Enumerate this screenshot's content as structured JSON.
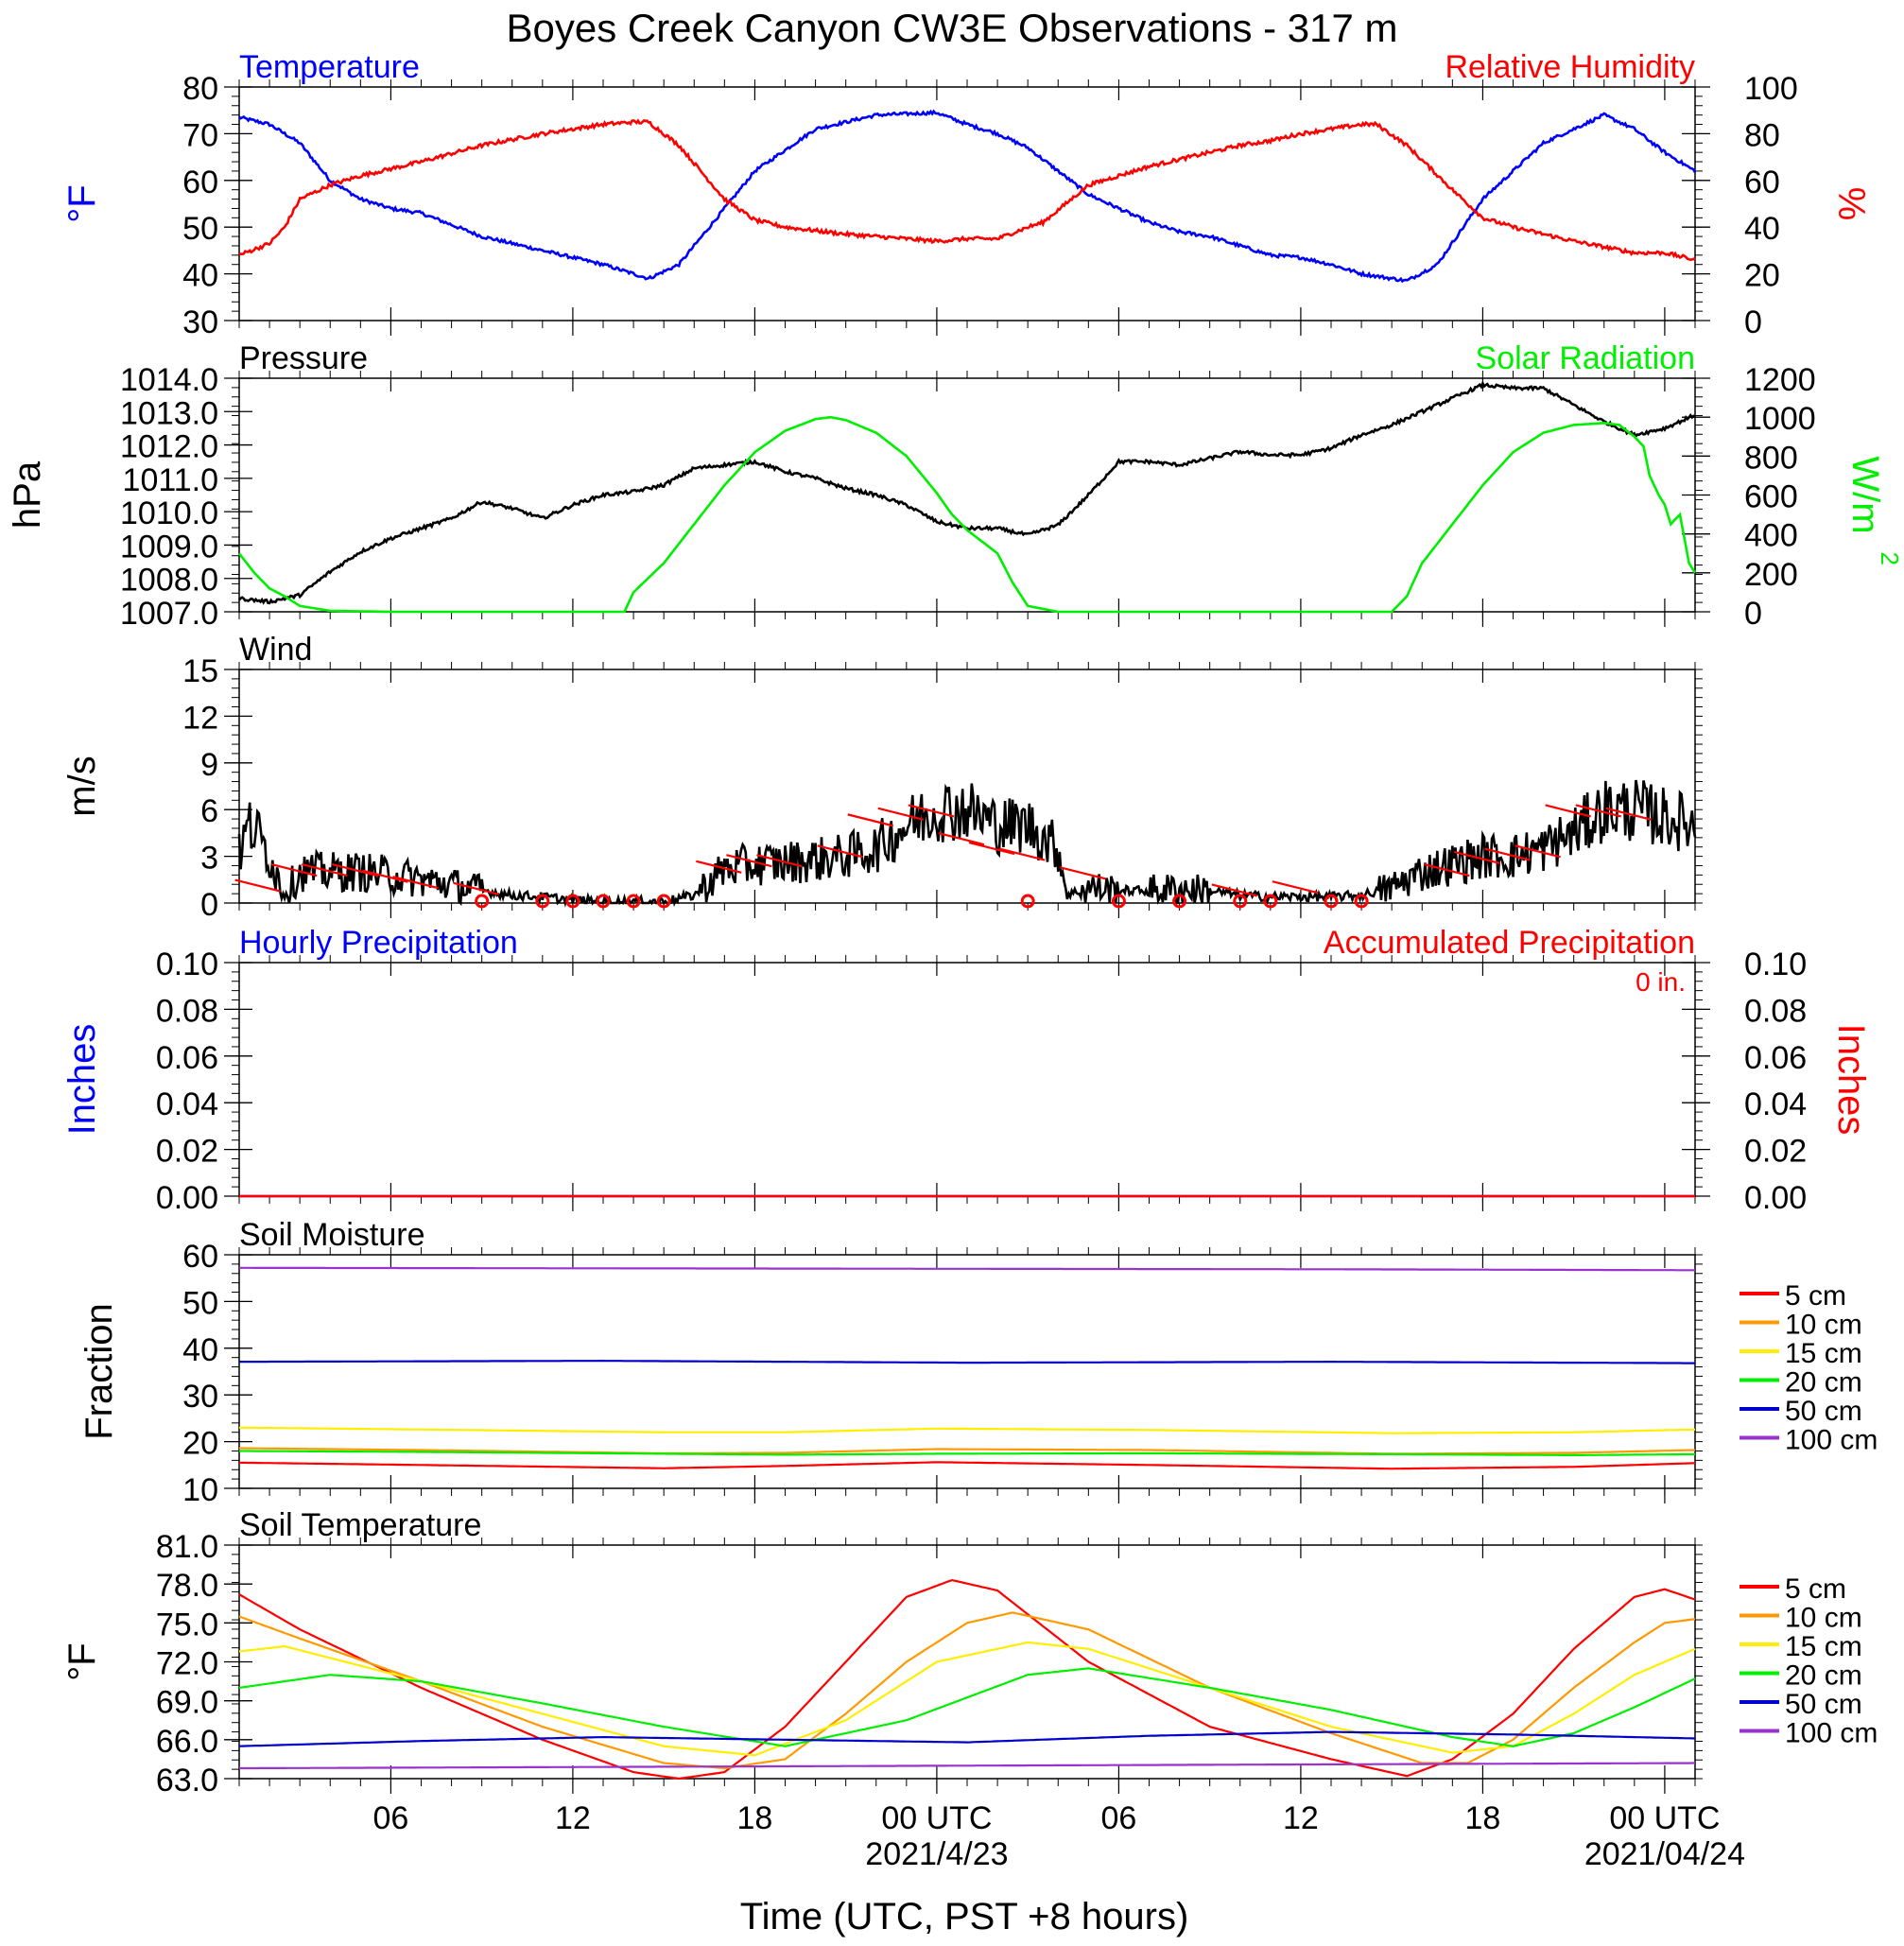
{
  "page": {
    "title": "Boyes Creek Canyon CW3E Observations - 317 m",
    "xlabel": "Time (UTC, PST +8 hours)",
    "x_ticks": [
      "06",
      "12",
      "18",
      "00 UTC",
      "06",
      "12",
      "18",
      "00 UTC"
    ],
    "date_labels": [
      "2021/4/23",
      "2021/04/24"
    ]
  },
  "colors": {
    "blue": "#0000ff",
    "red": "#ff0000",
    "green": "#00ee00",
    "black": "#000000",
    "orange": "#ff9900",
    "yellow": "#ffee00",
    "navy": "#0000cc",
    "purple": "#9933cc"
  },
  "chart_data": [
    {
      "id": "temp_rh",
      "type": "line",
      "left_title": "Temperature",
      "right_title": "Relative Humidity",
      "ylabel": "°F",
      "ylabel_right": "%",
      "ylim": [
        30,
        80
      ],
      "y_ticks": [
        "80",
        "70",
        "60",
        "50",
        "40",
        "30"
      ],
      "ylim_right": [
        0,
        100
      ],
      "y_ticks_right": [
        "100",
        "80",
        "60",
        "40",
        "20",
        "0"
      ],
      "xlim_hours": [
        0,
        48
      ],
      "series": [
        {
          "name": "Temperature",
          "axis": "left",
          "color": "#0000ff",
          "x": [
            0,
            1,
            2,
            3,
            4,
            5,
            6,
            8,
            10,
            12,
            13,
            13.5,
            14.5,
            16,
            17,
            19,
            21,
            23,
            24,
            25,
            26,
            27,
            28,
            29,
            30,
            31,
            32,
            34,
            35,
            36,
            37,
            38,
            38.5,
            39.5,
            41,
            43,
            45,
            46,
            47,
            48
          ],
          "y": [
            73.5,
            72,
            68,
            60,
            56,
            54,
            53,
            48,
            45,
            42,
            40,
            39,
            42,
            54,
            62,
            71,
            74,
            74.5,
            72,
            70,
            67,
            62,
            57,
            54,
            51,
            49,
            48,
            44,
            43.5,
            42,
            40,
            39,
            38.5,
            42,
            56,
            68,
            74,
            71,
            66,
            62
          ]
        },
        {
          "name": "Relative Humidity",
          "axis": "right",
          "color": "#ff0000",
          "x": [
            0,
            1,
            1.5,
            2,
            3,
            4,
            6,
            8,
            10,
            12,
            13,
            13.5,
            14.5,
            16,
            17,
            18,
            20,
            21,
            23,
            24,
            25,
            26,
            26.5,
            28,
            30,
            32,
            33,
            34,
            35,
            36,
            37,
            37.5,
            38.5,
            40,
            41,
            42,
            44,
            46,
            47,
            48
          ],
          "y": [
            28,
            33,
            40,
            52,
            58,
            62,
            68,
            75,
            80,
            84,
            85,
            85,
            75,
            52,
            43,
            40,
            37,
            36,
            34,
            35,
            35,
            40,
            42,
            58,
            66,
            72,
            75,
            77,
            80,
            82,
            84,
            84,
            75,
            56,
            44,
            40,
            34,
            29,
            29,
            26
          ]
        }
      ]
    },
    {
      "id": "pressure_solar",
      "type": "line",
      "left_title": "Pressure",
      "right_title": "Solar Radiation",
      "ylabel": "hPa",
      "ylabel_right": "W/m",
      "ylim": [
        1007,
        1014
      ],
      "y_ticks": [
        "1014.0",
        "1013.0",
        "1012.0",
        "1011.0",
        "1010.0",
        "1009.0",
        "1008.0",
        "1007.0"
      ],
      "ylim_right": [
        0,
        1200
      ],
      "y_ticks_right": [
        "1200",
        "1000",
        "800",
        "600",
        "400",
        "200",
        "0"
      ],
      "xlim_hours": [
        0,
        48
      ],
      "series": [
        {
          "name": "Pressure",
          "axis": "left",
          "color": "#000000",
          "x": [
            0,
            1,
            2,
            3,
            4,
            5,
            6,
            7,
            8,
            9,
            10,
            11,
            12,
            13,
            14,
            15,
            16,
            17,
            18,
            19,
            20,
            21,
            22,
            23,
            24,
            25,
            26,
            27,
            28,
            29,
            30,
            31,
            32,
            33,
            34,
            35,
            36,
            37,
            38,
            39,
            40,
            41,
            42,
            43,
            44,
            45,
            46,
            47,
            48
          ],
          "y": [
            1007.4,
            1007.3,
            1007.5,
            1008.2,
            1008.8,
            1009.2,
            1009.5,
            1009.8,
            1010.3,
            1010.1,
            1009.8,
            1010.2,
            1010.5,
            1010.6,
            1010.8,
            1011.3,
            1011.4,
            1011.5,
            1011.2,
            1011.0,
            1010.7,
            1010.5,
            1010.2,
            1009.7,
            1009.5,
            1009.5,
            1009.3,
            1009.6,
            1010.5,
            1011.5,
            1011.5,
            1011.4,
            1011.6,
            1011.8,
            1011.7,
            1011.7,
            1011.9,
            1012.3,
            1012.6,
            1013.0,
            1013.4,
            1013.8,
            1013.7,
            1013.7,
            1013.2,
            1012.7,
            1012.3,
            1012.5,
            1012.9
          ]
        },
        {
          "name": "Solar Radiation",
          "axis": "right",
          "color": "#00ee00",
          "x": [
            0,
            0.5,
            1,
            1.5,
            2,
            3,
            5,
            10,
            12,
            12.7,
            13,
            14,
            15,
            16,
            17,
            18,
            19,
            19.5,
            20,
            21,
            22,
            23,
            23.5,
            24,
            25,
            25.5,
            26,
            27,
            28,
            30,
            36,
            37,
            38,
            38.5,
            39,
            40,
            41,
            42,
            43,
            44,
            45,
            45.5,
            46,
            46.3,
            46.5,
            46.8,
            47,
            47.2,
            47.5,
            47.8,
            48
          ],
          "y": [
            300,
            200,
            120,
            80,
            30,
            5,
            0,
            0,
            0,
            0,
            100,
            250,
            450,
            650,
            820,
            930,
            990,
            1000,
            985,
            920,
            800,
            610,
            500,
            420,
            300,
            150,
            30,
            0,
            0,
            0,
            0,
            0,
            0,
            80,
            250,
            450,
            650,
            820,
            920,
            960,
            970,
            960,
            900,
            850,
            700,
            600,
            550,
            450,
            500,
            250,
            200
          ]
        }
      ]
    },
    {
      "id": "wind",
      "type": "line",
      "left_title": "Wind",
      "ylabel": "m/s",
      "ylim": [
        0,
        15
      ],
      "y_ticks": [
        "15",
        "12",
        "9",
        "6",
        "3",
        "0"
      ],
      "xlim_hours": [
        0,
        48
      ],
      "series": [
        {
          "name": "Wind speed",
          "color": "#000000",
          "x": [
            0,
            0.3,
            0.6,
            1,
            1.5,
            2,
            3,
            4,
            5,
            6,
            7,
            8,
            9,
            10,
            11,
            12,
            13,
            14,
            15,
            16,
            17,
            18,
            19,
            20,
            21,
            22,
            23,
            24,
            25,
            26,
            27,
            27.3,
            28,
            29,
            30,
            31,
            32,
            33,
            34,
            35,
            36,
            37,
            38,
            39,
            40,
            41,
            42,
            43,
            44,
            45,
            46,
            47,
            48
          ],
          "y": [
            3,
            5,
            4.5,
            3,
            0.5,
            2,
            2,
            2,
            1.8,
            1.5,
            1.2,
            0.8,
            0.5,
            0.4,
            0.2,
            0.1,
            0.1,
            0.1,
            0.5,
            2.2,
            2.5,
            2.6,
            2.8,
            3,
            3.5,
            5,
            6,
            6,
            5,
            5,
            3.5,
            0.5,
            1,
            0.8,
            0.8,
            0.9,
            0.8,
            0.5,
            0.4,
            0.4,
            0.4,
            0.5,
            1,
            2,
            2.5,
            3,
            3,
            3.5,
            4.5,
            6,
            6,
            5.5,
            5
          ]
        }
      ],
      "barb_calm_hours": [
        8,
        10,
        11,
        12,
        13,
        14,
        26,
        29,
        31,
        33,
        34,
        36,
        37
      ]
    },
    {
      "id": "precip",
      "type": "line",
      "left_title": "Hourly Precipitation",
      "right_title": "Accumulated Precipitation",
      "total_label": "0 in.",
      "ylabel": "Inches",
      "ylabel_right": "Inches",
      "ylim": [
        0,
        0.1
      ],
      "y_ticks": [
        "0.10",
        "0.08",
        "0.06",
        "0.04",
        "0.02",
        "0.00"
      ],
      "y_ticks_right": [
        "0.10",
        "0.08",
        "0.06",
        "0.04",
        "0.02",
        "0.00"
      ],
      "xlim_hours": [
        0,
        48
      ],
      "series": [
        {
          "name": "Hourly Precipitation",
          "color": "#0000ff",
          "x": [
            0,
            48
          ],
          "y": [
            0,
            0
          ]
        },
        {
          "name": "Accumulated Precipitation",
          "color": "#ff0000",
          "x": [
            0,
            48
          ],
          "y": [
            0,
            0
          ]
        }
      ]
    },
    {
      "id": "soil_moisture",
      "type": "line",
      "left_title": "Soil Moisture",
      "ylabel": "Fraction",
      "ylim": [
        10,
        60
      ],
      "y_ticks": [
        "60",
        "50",
        "40",
        "30",
        "20",
        "10"
      ],
      "xlim_hours": [
        0,
        48
      ],
      "legend_title": "",
      "series": [
        {
          "name": "5 cm",
          "color": "#ff0000",
          "x": [
            0,
            6,
            14,
            18,
            23,
            30,
            38,
            44,
            48
          ],
          "y": [
            15.5,
            15,
            14.3,
            14.8,
            15.6,
            15,
            14.2,
            14.6,
            15.4
          ]
        },
        {
          "name": "10 cm",
          "color": "#ff9900",
          "x": [
            0,
            6,
            14,
            18,
            23,
            30,
            38,
            44,
            48
          ],
          "y": [
            18.6,
            18.2,
            17.5,
            17.6,
            18.4,
            18.2,
            17.4,
            17.6,
            18.2
          ]
        },
        {
          "name": "15 cm",
          "color": "#ffee00",
          "x": [
            0,
            6,
            14,
            18,
            23,
            30,
            38,
            44,
            48
          ],
          "y": [
            23,
            22.6,
            22,
            22,
            22.8,
            22.5,
            21.8,
            22,
            22.6
          ]
        },
        {
          "name": "20 cm",
          "color": "#00ee00",
          "x": [
            0,
            6,
            14,
            18,
            23,
            30,
            38,
            44,
            48
          ],
          "y": [
            18,
            17.8,
            17.4,
            17.2,
            17.4,
            17.5,
            17.3,
            17.1,
            17.3
          ]
        },
        {
          "name": "50 cm",
          "color": "#0000cc",
          "x": [
            0,
            12,
            24,
            36,
            48
          ],
          "y": [
            37.1,
            37.3,
            36.9,
            37.1,
            36.8
          ]
        },
        {
          "name": "100 cm",
          "color": "#9933cc",
          "x": [
            0,
            12,
            24,
            36,
            48
          ],
          "y": [
            57.2,
            57.1,
            57,
            56.9,
            56.7
          ]
        }
      ]
    },
    {
      "id": "soil_temperature",
      "type": "line",
      "left_title": "Soil Temperature",
      "ylabel": "°F",
      "ylim": [
        63,
        81
      ],
      "y_ticks": [
        "81.0",
        "78.0",
        "75.0",
        "72.0",
        "69.0",
        "66.0",
        "63.0"
      ],
      "xlim_hours": [
        0,
        48
      ],
      "series": [
        {
          "name": "5 cm",
          "color": "#ff0000",
          "x": [
            0,
            2,
            6,
            10,
            13,
            14.5,
            16,
            18,
            20,
            22,
            23.5,
            25,
            28,
            32,
            36,
            38.5,
            40,
            42,
            44,
            46,
            47,
            48
          ],
          "y": [
            77.2,
            74.5,
            70,
            66,
            63.5,
            63,
            63.5,
            67,
            72,
            77,
            78.3,
            77.5,
            72,
            67,
            64.5,
            63.2,
            64.5,
            68,
            73,
            77,
            77.6,
            76.8
          ]
        },
        {
          "name": "10 cm",
          "color": "#ff9900",
          "x": [
            0,
            2,
            6,
            10,
            14,
            16,
            18,
            20,
            22,
            24,
            25.5,
            28,
            32,
            36,
            39,
            40.5,
            42,
            44,
            46,
            47,
            48
          ],
          "y": [
            75.5,
            73.8,
            70.5,
            67,
            64.2,
            63.8,
            64.5,
            68,
            72,
            75,
            75.8,
            74.5,
            70,
            66.5,
            64.2,
            64.2,
            66,
            70,
            73.5,
            75,
            75.3
          ]
        },
        {
          "name": "15 cm",
          "color": "#ffee00",
          "x": [
            0,
            1.5,
            6,
            10,
            14,
            17,
            20,
            23,
            26,
            28,
            32,
            36,
            40,
            42,
            44,
            46,
            48
          ],
          "y": [
            72.8,
            73.2,
            70.5,
            68,
            65.5,
            64.8,
            67.5,
            72,
            73.5,
            73,
            70,
            67,
            65,
            65.5,
            68,
            71,
            73
          ]
        },
        {
          "name": "20 cm",
          "color": "#00ee00",
          "x": [
            0,
            3,
            6,
            10,
            14,
            18,
            22,
            26,
            28,
            32,
            36,
            40,
            42,
            44,
            46,
            48
          ],
          "y": [
            70,
            71,
            70.5,
            68.8,
            67,
            65.5,
            67.5,
            71,
            71.5,
            70,
            68.3,
            66.2,
            65.5,
            66.5,
            68.5,
            70.7
          ]
        },
        {
          "name": "50 cm",
          "color": "#0000cc",
          "x": [
            0,
            6,
            12,
            18,
            24,
            30,
            36,
            42,
            48
          ],
          "y": [
            65.5,
            65.9,
            66.2,
            66,
            65.8,
            66.3,
            66.6,
            66.4,
            66.1
          ]
        },
        {
          "name": "100 cm",
          "color": "#9933cc",
          "x": [
            0,
            12,
            24,
            36,
            48
          ],
          "y": [
            63.8,
            63.9,
            64,
            64.1,
            64.2
          ]
        }
      ]
    }
  ]
}
